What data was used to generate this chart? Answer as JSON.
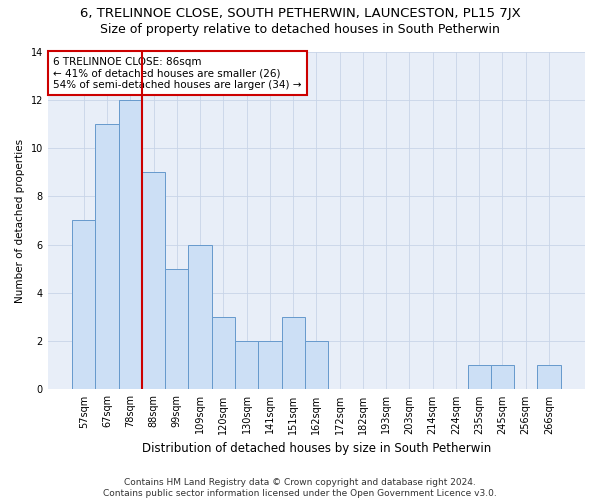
{
  "title": "6, TRELINNOE CLOSE, SOUTH PETHERWIN, LAUNCESTON, PL15 7JX",
  "subtitle": "Size of property relative to detached houses in South Petherwin",
  "xlabel": "Distribution of detached houses by size in South Petherwin",
  "ylabel": "Number of detached properties",
  "categories": [
    "57sqm",
    "67sqm",
    "78sqm",
    "88sqm",
    "99sqm",
    "109sqm",
    "120sqm",
    "130sqm",
    "141sqm",
    "151sqm",
    "162sqm",
    "172sqm",
    "182sqm",
    "193sqm",
    "203sqm",
    "214sqm",
    "224sqm",
    "235sqm",
    "245sqm",
    "256sqm",
    "266sqm"
  ],
  "values": [
    7,
    11,
    12,
    9,
    5,
    6,
    3,
    2,
    2,
    3,
    2,
    0,
    0,
    0,
    0,
    0,
    0,
    1,
    1,
    0,
    1
  ],
  "bar_color": "#ccdff5",
  "bar_edge_color": "#6699cc",
  "bar_edge_width": 0.7,
  "red_line_x": 2.5,
  "annotation_title": "6 TRELINNOE CLOSE: 86sqm",
  "annotation_line1": "← 41% of detached houses are smaller (26)",
  "annotation_line2": "54% of semi-detached houses are larger (34) →",
  "annotation_box_color": "#ffffff",
  "annotation_box_edge_color": "#cc0000",
  "red_line_color": "#cc0000",
  "ylim": [
    0,
    14
  ],
  "yticks": [
    0,
    2,
    4,
    6,
    8,
    10,
    12,
    14
  ],
  "grid_color": "#c8d4e8",
  "background_color": "#e8eef8",
  "footer_line1": "Contains HM Land Registry data © Crown copyright and database right 2024.",
  "footer_line2": "Contains public sector information licensed under the Open Government Licence v3.0.",
  "title_fontsize": 9.5,
  "subtitle_fontsize": 9,
  "xlabel_fontsize": 8.5,
  "ylabel_fontsize": 7.5,
  "tick_fontsize": 7,
  "annotation_fontsize": 7.5,
  "footer_fontsize": 6.5
}
